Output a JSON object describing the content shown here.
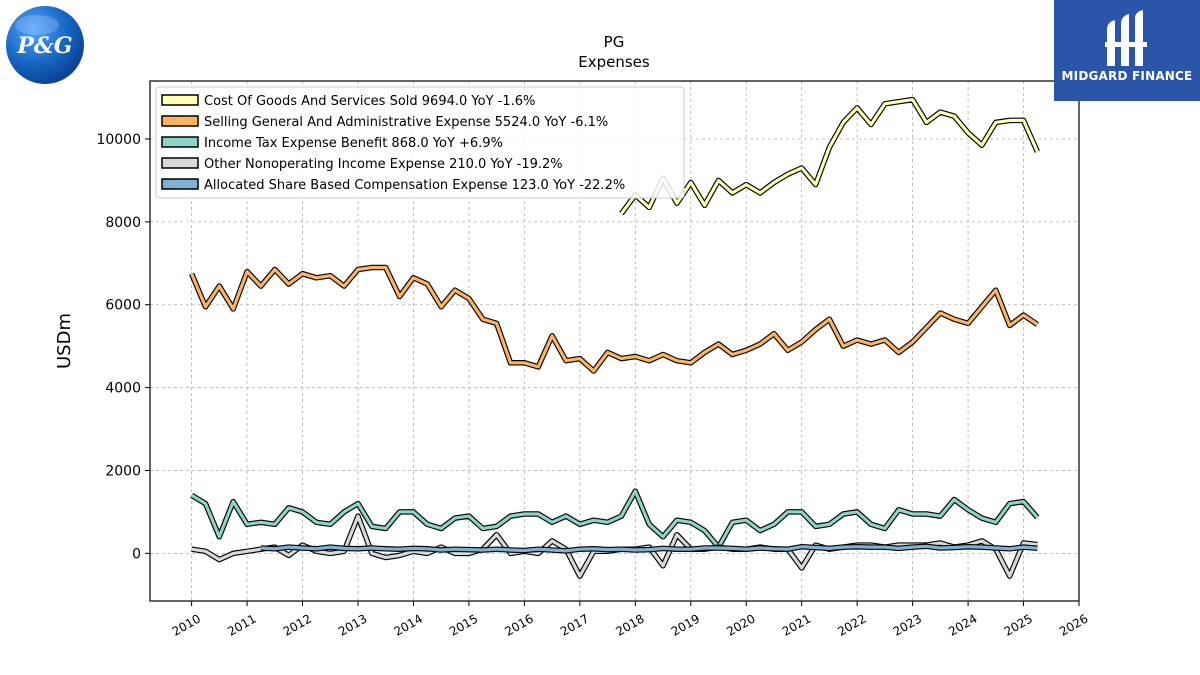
{
  "logos": {
    "left_text": "P&G",
    "right_text": "MIDGARD FINANCE"
  },
  "colors": {
    "cogs": "#ffffb3",
    "sga": "#fdb462",
    "tax": "#8dd3c7",
    "nonop": "#d9d9d9",
    "sbc": "#80b1d3",
    "pg_logo": "#1565c0",
    "midgard_bg": "#2a55a8"
  },
  "chart_data": {
    "type": "line",
    "title": "PG",
    "subtitle": "Expenses",
    "ylabel": "USDm",
    "xlabel": "",
    "xlim": [
      2009.25,
      2026
    ],
    "ylim": [
      -1150,
      11400
    ],
    "yticks": [
      0,
      2000,
      4000,
      6000,
      8000,
      10000
    ],
    "xticks": [
      2010,
      2011,
      2012,
      2013,
      2014,
      2015,
      2016,
      2017,
      2018,
      2019,
      2020,
      2021,
      2022,
      2023,
      2024,
      2025,
      2026
    ],
    "grid": true,
    "legend_position": "top-left",
    "series": [
      {
        "name": "Cost Of Goods And Services Sold",
        "legend": "Cost Of Goods And Services Sold  9694.0 YoY -1.6%",
        "color_key": "cogs",
        "points": [
          [
            2017.75,
            8200
          ],
          [
            2018.0,
            8650
          ],
          [
            2018.25,
            8350
          ],
          [
            2018.5,
            9050
          ],
          [
            2018.75,
            8450
          ],
          [
            2019.0,
            8950
          ],
          [
            2019.25,
            8400
          ],
          [
            2019.5,
            9000
          ],
          [
            2019.75,
            8700
          ],
          [
            2020.0,
            8900
          ],
          [
            2020.25,
            8700
          ],
          [
            2020.5,
            8950
          ],
          [
            2020.75,
            9150
          ],
          [
            2021.0,
            9300
          ],
          [
            2021.25,
            8900
          ],
          [
            2021.5,
            9800
          ],
          [
            2021.75,
            10400
          ],
          [
            2022.0,
            10750
          ],
          [
            2022.25,
            10350
          ],
          [
            2022.5,
            10850
          ],
          [
            2022.75,
            10900
          ],
          [
            2023.0,
            10950
          ],
          [
            2023.25,
            10400
          ],
          [
            2023.5,
            10650
          ],
          [
            2023.75,
            10550
          ],
          [
            2024.0,
            10150
          ],
          [
            2024.25,
            9850
          ],
          [
            2024.5,
            10400
          ],
          [
            2024.75,
            10450
          ],
          [
            2025.0,
            10450
          ],
          [
            2025.25,
            9694
          ]
        ]
      },
      {
        "name": "Selling General And Administrative Expense",
        "legend": "Selling General And Administrative Expense  5524.0 YoY -6.1%",
        "color_key": "sga",
        "points": [
          [
            2010.0,
            6750
          ],
          [
            2010.25,
            5950
          ],
          [
            2010.5,
            6450
          ],
          [
            2010.75,
            5900
          ],
          [
            2011.0,
            6800
          ],
          [
            2011.25,
            6450
          ],
          [
            2011.5,
            6850
          ],
          [
            2011.75,
            6500
          ],
          [
            2012.0,
            6750
          ],
          [
            2012.25,
            6650
          ],
          [
            2012.5,
            6700
          ],
          [
            2012.75,
            6450
          ],
          [
            2013.0,
            6850
          ],
          [
            2013.25,
            6900
          ],
          [
            2013.5,
            6900
          ],
          [
            2013.75,
            6200
          ],
          [
            2014.0,
            6650
          ],
          [
            2014.25,
            6500
          ],
          [
            2014.5,
            5950
          ],
          [
            2014.75,
            6350
          ],
          [
            2015.0,
            6150
          ],
          [
            2015.25,
            5650
          ],
          [
            2015.5,
            5550
          ],
          [
            2015.75,
            4600
          ],
          [
            2016.0,
            4600
          ],
          [
            2016.25,
            4500
          ],
          [
            2016.5,
            5250
          ],
          [
            2016.75,
            4650
          ],
          [
            2017.0,
            4700
          ],
          [
            2017.25,
            4400
          ],
          [
            2017.5,
            4850
          ],
          [
            2017.75,
            4700
          ],
          [
            2018.0,
            4750
          ],
          [
            2018.25,
            4650
          ],
          [
            2018.5,
            4800
          ],
          [
            2018.75,
            4650
          ],
          [
            2019.0,
            4600
          ],
          [
            2019.25,
            4850
          ],
          [
            2019.5,
            5050
          ],
          [
            2019.75,
            4800
          ],
          [
            2020.0,
            4900
          ],
          [
            2020.25,
            5050
          ],
          [
            2020.5,
            5300
          ],
          [
            2020.75,
            4900
          ],
          [
            2021.0,
            5100
          ],
          [
            2021.25,
            5400
          ],
          [
            2021.5,
            5650
          ],
          [
            2021.75,
            5000
          ],
          [
            2022.0,
            5150
          ],
          [
            2022.25,
            5050
          ],
          [
            2022.5,
            5150
          ],
          [
            2022.75,
            4850
          ],
          [
            2023.0,
            5100
          ],
          [
            2023.25,
            5450
          ],
          [
            2023.5,
            5800
          ],
          [
            2023.75,
            5650
          ],
          [
            2024.0,
            5550
          ],
          [
            2024.25,
            5950
          ],
          [
            2024.5,
            6350
          ],
          [
            2024.75,
            5500
          ],
          [
            2025.0,
            5750
          ],
          [
            2025.25,
            5524
          ]
        ]
      },
      {
        "name": "Income Tax Expense Benefit",
        "legend": "Income Tax Expense Benefit  868.0 YoY +6.9%",
        "color_key": "tax",
        "points": [
          [
            2010.0,
            1400
          ],
          [
            2010.25,
            1200
          ],
          [
            2010.5,
            400
          ],
          [
            2010.75,
            1250
          ],
          [
            2011.0,
            700
          ],
          [
            2011.25,
            750
          ],
          [
            2011.5,
            700
          ],
          [
            2011.75,
            1100
          ],
          [
            2012.0,
            1000
          ],
          [
            2012.25,
            750
          ],
          [
            2012.5,
            700
          ],
          [
            2012.75,
            1000
          ],
          [
            2013.0,
            1200
          ],
          [
            2013.25,
            650
          ],
          [
            2013.5,
            600
          ],
          [
            2013.75,
            1000
          ],
          [
            2014.0,
            1000
          ],
          [
            2014.25,
            700
          ],
          [
            2014.5,
            600
          ],
          [
            2014.75,
            850
          ],
          [
            2015.0,
            900
          ],
          [
            2015.25,
            600
          ],
          [
            2015.5,
            650
          ],
          [
            2015.75,
            900
          ],
          [
            2016.0,
            950
          ],
          [
            2016.25,
            950
          ],
          [
            2016.5,
            750
          ],
          [
            2016.75,
            900
          ],
          [
            2017.0,
            700
          ],
          [
            2017.25,
            800
          ],
          [
            2017.5,
            750
          ],
          [
            2017.75,
            900
          ],
          [
            2018.0,
            1500
          ],
          [
            2018.25,
            700
          ],
          [
            2018.5,
            400
          ],
          [
            2018.75,
            800
          ],
          [
            2019.0,
            750
          ],
          [
            2019.25,
            550
          ],
          [
            2019.5,
            150
          ],
          [
            2019.75,
            750
          ],
          [
            2020.0,
            800
          ],
          [
            2020.25,
            550
          ],
          [
            2020.5,
            700
          ],
          [
            2020.75,
            1000
          ],
          [
            2021.0,
            1000
          ],
          [
            2021.25,
            650
          ],
          [
            2021.5,
            700
          ],
          [
            2021.75,
            950
          ],
          [
            2022.0,
            1000
          ],
          [
            2022.25,
            700
          ],
          [
            2022.5,
            600
          ],
          [
            2022.75,
            1050
          ],
          [
            2023.0,
            950
          ],
          [
            2023.25,
            950
          ],
          [
            2023.5,
            900
          ],
          [
            2023.75,
            1300
          ],
          [
            2024.0,
            1050
          ],
          [
            2024.25,
            850
          ],
          [
            2024.5,
            750
          ],
          [
            2024.75,
            1200
          ],
          [
            2025.0,
            1250
          ],
          [
            2025.25,
            868
          ]
        ]
      },
      {
        "name": "Other Nonoperating Income Expense",
        "legend": "Other Nonoperating Income Expense  210.0 YoY -19.2%",
        "color_key": "nonop",
        "points": [
          [
            2010.0,
            100
          ],
          [
            2010.25,
            50
          ],
          [
            2010.5,
            -150
          ],
          [
            2010.75,
            0
          ],
          [
            2011.0,
            50
          ],
          [
            2011.25,
            100
          ],
          [
            2011.5,
            150
          ],
          [
            2011.75,
            -50
          ],
          [
            2012.0,
            200
          ],
          [
            2012.25,
            50
          ],
          [
            2012.5,
            0
          ],
          [
            2012.75,
            50
          ],
          [
            2013.0,
            900
          ],
          [
            2013.25,
            0
          ],
          [
            2013.5,
            -100
          ],
          [
            2013.75,
            -50
          ],
          [
            2014.0,
            50
          ],
          [
            2014.25,
            0
          ],
          [
            2014.5,
            150
          ],
          [
            2014.75,
            0
          ],
          [
            2015.0,
            0
          ],
          [
            2015.25,
            100
          ],
          [
            2015.5,
            450
          ],
          [
            2015.75,
            0
          ],
          [
            2016.0,
            50
          ],
          [
            2016.25,
            0
          ],
          [
            2016.5,
            300
          ],
          [
            2016.75,
            100
          ],
          [
            2017.0,
            -550
          ],
          [
            2017.25,
            50
          ],
          [
            2017.5,
            50
          ],
          [
            2017.75,
            100
          ],
          [
            2018.0,
            100
          ],
          [
            2018.25,
            150
          ],
          [
            2018.5,
            -300
          ],
          [
            2018.75,
            450
          ],
          [
            2019.0,
            100
          ],
          [
            2019.25,
            100
          ],
          [
            2019.5,
            150
          ],
          [
            2019.75,
            100
          ],
          [
            2020.0,
            100
          ],
          [
            2020.25,
            150
          ],
          [
            2020.5,
            100
          ],
          [
            2020.75,
            100
          ],
          [
            2021.0,
            -350
          ],
          [
            2021.25,
            200
          ],
          [
            2021.5,
            100
          ],
          [
            2021.75,
            150
          ],
          [
            2022.0,
            200
          ],
          [
            2022.25,
            200
          ],
          [
            2022.5,
            150
          ],
          [
            2022.75,
            200
          ],
          [
            2023.0,
            200
          ],
          [
            2023.25,
            200
          ],
          [
            2023.5,
            250
          ],
          [
            2023.75,
            150
          ],
          [
            2024.0,
            200
          ],
          [
            2024.25,
            300
          ],
          [
            2024.5,
            100
          ],
          [
            2024.75,
            -550
          ],
          [
            2025.0,
            250
          ],
          [
            2025.25,
            210
          ]
        ]
      },
      {
        "name": "Allocated Share Based Compensation Expense",
        "legend": "Allocated Share Based Compensation Expense  123.0 YoY -22.2%",
        "color_key": "sbc",
        "points": [
          [
            2011.25,
            130
          ],
          [
            2011.5,
            110
          ],
          [
            2011.75,
            150
          ],
          [
            2012.0,
            130
          ],
          [
            2012.25,
            110
          ],
          [
            2012.5,
            150
          ],
          [
            2012.75,
            120
          ],
          [
            2013.0,
            110
          ],
          [
            2013.25,
            130
          ],
          [
            2013.5,
            110
          ],
          [
            2013.75,
            100
          ],
          [
            2014.0,
            120
          ],
          [
            2014.25,
            110
          ],
          [
            2014.5,
            80
          ],
          [
            2014.75,
            100
          ],
          [
            2015.0,
            90
          ],
          [
            2015.25,
            80
          ],
          [
            2015.5,
            100
          ],
          [
            2015.75,
            80
          ],
          [
            2016.0,
            70
          ],
          [
            2016.25,
            100
          ],
          [
            2016.5,
            80
          ],
          [
            2016.75,
            60
          ],
          [
            2017.0,
            100
          ],
          [
            2017.25,
            110
          ],
          [
            2017.5,
            90
          ],
          [
            2017.75,
            100
          ],
          [
            2018.0,
            80
          ],
          [
            2018.25,
            90
          ],
          [
            2018.5,
            120
          ],
          [
            2018.75,
            100
          ],
          [
            2019.0,
            100
          ],
          [
            2019.25,
            130
          ],
          [
            2019.5,
            130
          ],
          [
            2019.75,
            120
          ],
          [
            2020.0,
            100
          ],
          [
            2020.25,
            130
          ],
          [
            2020.5,
            110
          ],
          [
            2020.75,
            100
          ],
          [
            2021.0,
            160
          ],
          [
            2021.25,
            140
          ],
          [
            2021.5,
            120
          ],
          [
            2021.75,
            150
          ],
          [
            2022.0,
            160
          ],
          [
            2022.25,
            150
          ],
          [
            2022.5,
            150
          ],
          [
            2022.75,
            120
          ],
          [
            2023.0,
            150
          ],
          [
            2023.25,
            170
          ],
          [
            2023.5,
            130
          ],
          [
            2023.75,
            140
          ],
          [
            2024.0,
            160
          ],
          [
            2024.25,
            150
          ],
          [
            2024.5,
            130
          ],
          [
            2024.75,
            110
          ],
          [
            2025.0,
            150
          ],
          [
            2025.25,
            123
          ]
        ]
      }
    ]
  }
}
